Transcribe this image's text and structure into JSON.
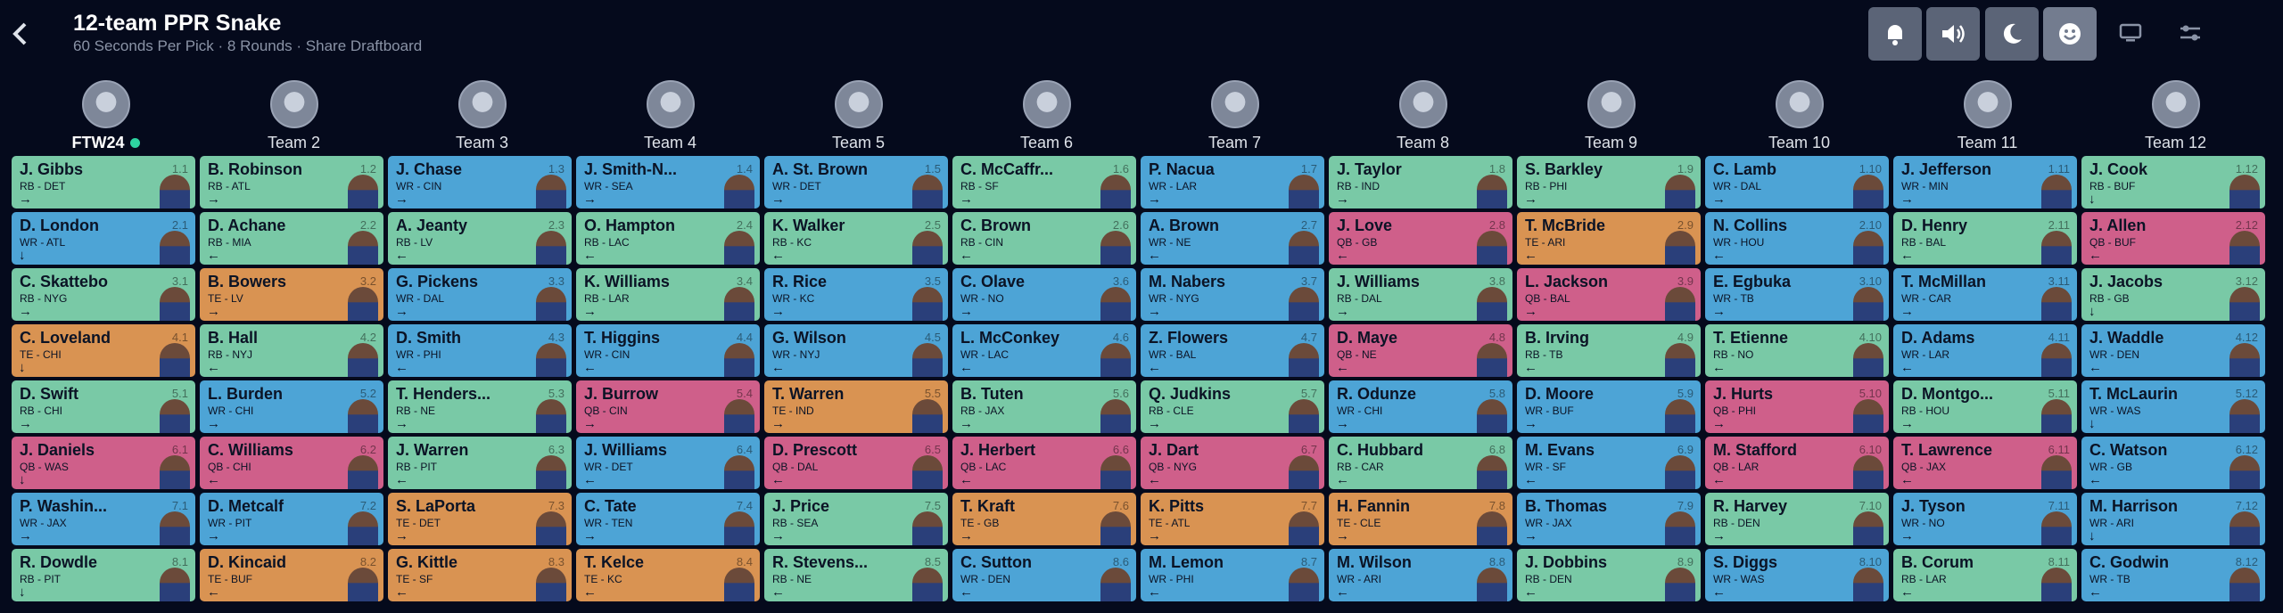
{
  "header": {
    "title": "12-team PPR Snake",
    "subtitle": "60 Seconds Per Pick · 8 Rounds · Share Draftboard"
  },
  "teams": [
    "FTW24",
    "Team 2",
    "Team 3",
    "Team 4",
    "Team 5",
    "Team 6",
    "Team 7",
    "Team 8",
    "Team 9",
    "Team 10",
    "Team 11",
    "Team 12"
  ],
  "position_colors": {
    "RB": "#79c9a6",
    "WR": "#4da4d6",
    "QB": "#cf5f8a",
    "TE": "#d99352"
  },
  "rounds": [
    [
      {
        "name": "J. Gibbs",
        "info": "RB - DET",
        "pick": "1.1"
      },
      {
        "name": "B. Robinson",
        "info": "RB - ATL",
        "pick": "1.2"
      },
      {
        "name": "J. Chase",
        "info": "WR - CIN",
        "pick": "1.3"
      },
      {
        "name": "J. Smith-N...",
        "info": "WR - SEA",
        "pick": "1.4"
      },
      {
        "name": "A. St. Brown",
        "info": "WR - DET",
        "pick": "1.5"
      },
      {
        "name": "C. McCaffr...",
        "info": "RB - SF",
        "pick": "1.6"
      },
      {
        "name": "P. Nacua",
        "info": "WR - LAR",
        "pick": "1.7"
      },
      {
        "name": "J. Taylor",
        "info": "RB - IND",
        "pick": "1.8"
      },
      {
        "name": "S. Barkley",
        "info": "RB - PHI",
        "pick": "1.9"
      },
      {
        "name": "C. Lamb",
        "info": "WR - DAL",
        "pick": "1.10"
      },
      {
        "name": "J. Jefferson",
        "info": "WR - MIN",
        "pick": "1.11"
      },
      {
        "name": "J. Cook",
        "info": "RB - BUF",
        "pick": "1.12"
      }
    ],
    [
      {
        "name": "J. Allen",
        "info": "QB - BUF",
        "pick": "2.12"
      },
      {
        "name": "D. Henry",
        "info": "RB - BAL",
        "pick": "2.11"
      },
      {
        "name": "N. Collins",
        "info": "WR - HOU",
        "pick": "2.10"
      },
      {
        "name": "T. McBride",
        "info": "TE - ARI",
        "pick": "2.9"
      },
      {
        "name": "J. Love",
        "info": "QB - GB",
        "pick": "2.8"
      },
      {
        "name": "A. Brown",
        "info": "WR - NE",
        "pick": "2.7"
      },
      {
        "name": "C. Brown",
        "info": "RB - CIN",
        "pick": "2.6"
      },
      {
        "name": "K. Walker",
        "info": "RB - KC",
        "pick": "2.5"
      },
      {
        "name": "O. Hampton",
        "info": "RB - LAC",
        "pick": "2.4"
      },
      {
        "name": "A. Jeanty",
        "info": "RB - LV",
        "pick": "2.3"
      },
      {
        "name": "D. Achane",
        "info": "RB - MIA",
        "pick": "2.2"
      },
      {
        "name": "D. London",
        "info": "WR - ATL",
        "pick": "2.1"
      }
    ],
    [
      {
        "name": "C. Skattebo",
        "info": "RB - NYG",
        "pick": "3.1"
      },
      {
        "name": "B. Bowers",
        "info": "TE - LV",
        "pick": "3.2"
      },
      {
        "name": "G. Pickens",
        "info": "WR - DAL",
        "pick": "3.3"
      },
      {
        "name": "K. Williams",
        "info": "RB - LAR",
        "pick": "3.4"
      },
      {
        "name": "R. Rice",
        "info": "WR - KC",
        "pick": "3.5"
      },
      {
        "name": "C. Olave",
        "info": "WR - NO",
        "pick": "3.6"
      },
      {
        "name": "M. Nabers",
        "info": "WR - NYG",
        "pick": "3.7"
      },
      {
        "name": "J. Williams",
        "info": "RB - DAL",
        "pick": "3.8"
      },
      {
        "name": "L. Jackson",
        "info": "QB - BAL",
        "pick": "3.9"
      },
      {
        "name": "E. Egbuka",
        "info": "WR - TB",
        "pick": "3.10"
      },
      {
        "name": "T. McMillan",
        "info": "WR - CAR",
        "pick": "3.11"
      },
      {
        "name": "J. Jacobs",
        "info": "RB - GB",
        "pick": "3.12"
      }
    ],
    [
      {
        "name": "J. Waddle",
        "info": "WR - DEN",
        "pick": "4.12"
      },
      {
        "name": "D. Adams",
        "info": "WR - LAR",
        "pick": "4.11"
      },
      {
        "name": "T. Etienne",
        "info": "RB - NO",
        "pick": "4.10"
      },
      {
        "name": "B. Irving",
        "info": "RB - TB",
        "pick": "4.9"
      },
      {
        "name": "D. Maye",
        "info": "QB - NE",
        "pick": "4.8"
      },
      {
        "name": "Z. Flowers",
        "info": "WR - BAL",
        "pick": "4.7"
      },
      {
        "name": "L. McConkey",
        "info": "WR - LAC",
        "pick": "4.6"
      },
      {
        "name": "G. Wilson",
        "info": "WR - NYJ",
        "pick": "4.5"
      },
      {
        "name": "T. Higgins",
        "info": "WR - CIN",
        "pick": "4.4"
      },
      {
        "name": "D. Smith",
        "info": "WR - PHI",
        "pick": "4.3"
      },
      {
        "name": "B. Hall",
        "info": "RB - NYJ",
        "pick": "4.2"
      },
      {
        "name": "C. Loveland",
        "info": "TE - CHI",
        "pick": "4.1"
      }
    ],
    [
      {
        "name": "D. Swift",
        "info": "RB - CHI",
        "pick": "5.1"
      },
      {
        "name": "L. Burden",
        "info": "WR - CHI",
        "pick": "5.2"
      },
      {
        "name": "T. Henders...",
        "info": "RB - NE",
        "pick": "5.3"
      },
      {
        "name": "J. Burrow",
        "info": "QB - CIN",
        "pick": "5.4"
      },
      {
        "name": "T. Warren",
        "info": "TE - IND",
        "pick": "5.5"
      },
      {
        "name": "B. Tuten",
        "info": "RB - JAX",
        "pick": "5.6"
      },
      {
        "name": "Q. Judkins",
        "info": "RB - CLE",
        "pick": "5.7"
      },
      {
        "name": "R. Odunze",
        "info": "WR - CHI",
        "pick": "5.8"
      },
      {
        "name": "D. Moore",
        "info": "WR - BUF",
        "pick": "5.9"
      },
      {
        "name": "J. Hurts",
        "info": "QB - PHI",
        "pick": "5.10"
      },
      {
        "name": "D. Montgo...",
        "info": "RB - HOU",
        "pick": "5.11"
      },
      {
        "name": "T. McLaurin",
        "info": "WR - WAS",
        "pick": "5.12"
      }
    ],
    [
      {
        "name": "C. Watson",
        "info": "WR - GB",
        "pick": "6.12"
      },
      {
        "name": "T. Lawrence",
        "info": "QB - JAX",
        "pick": "6.11"
      },
      {
        "name": "M. Stafford",
        "info": "QB - LAR",
        "pick": "6.10"
      },
      {
        "name": "M. Evans",
        "info": "WR - SF",
        "pick": "6.9"
      },
      {
        "name": "C. Hubbard",
        "info": "RB - CAR",
        "pick": "6.8"
      },
      {
        "name": "J. Dart",
        "info": "QB - NYG",
        "pick": "6.7"
      },
      {
        "name": "J. Herbert",
        "info": "QB - LAC",
        "pick": "6.6"
      },
      {
        "name": "D. Prescott",
        "info": "QB - DAL",
        "pick": "6.5"
      },
      {
        "name": "J. Williams",
        "info": "WR - DET",
        "pick": "6.4"
      },
      {
        "name": "J. Warren",
        "info": "RB - PIT",
        "pick": "6.3"
      },
      {
        "name": "C. Williams",
        "info": "QB - CHI",
        "pick": "6.2"
      },
      {
        "name": "J. Daniels",
        "info": "QB - WAS",
        "pick": "6.1"
      }
    ],
    [
      {
        "name": "P. Washin...",
        "info": "WR - JAX",
        "pick": "7.1"
      },
      {
        "name": "D. Metcalf",
        "info": "WR - PIT",
        "pick": "7.2"
      },
      {
        "name": "S. LaPorta",
        "info": "TE - DET",
        "pick": "7.3"
      },
      {
        "name": "C. Tate",
        "info": "WR - TEN",
        "pick": "7.4"
      },
      {
        "name": "J. Price",
        "info": "RB - SEA",
        "pick": "7.5"
      },
      {
        "name": "T. Kraft",
        "info": "TE - GB",
        "pick": "7.6"
      },
      {
        "name": "K. Pitts",
        "info": "TE - ATL",
        "pick": "7.7"
      },
      {
        "name": "H. Fannin",
        "info": "TE - CLE",
        "pick": "7.8"
      },
      {
        "name": "B. Thomas",
        "info": "WR - JAX",
        "pick": "7.9"
      },
      {
        "name": "R. Harvey",
        "info": "RB - DEN",
        "pick": "7.10"
      },
      {
        "name": "J. Tyson",
        "info": "WR - NO",
        "pick": "7.11"
      },
      {
        "name": "M. Harrison",
        "info": "WR - ARI",
        "pick": "7.12"
      }
    ],
    [
      {
        "name": "C. Godwin",
        "info": "WR - TB",
        "pick": "8.12"
      },
      {
        "name": "B. Corum",
        "info": "RB - LAR",
        "pick": "8.11"
      },
      {
        "name": "S. Diggs",
        "info": "WR - WAS",
        "pick": "8.10"
      },
      {
        "name": "J. Dobbins",
        "info": "RB - DEN",
        "pick": "8.9"
      },
      {
        "name": "M. Wilson",
        "info": "WR - ARI",
        "pick": "8.8"
      },
      {
        "name": "M. Lemon",
        "info": "WR - PHI",
        "pick": "8.7"
      },
      {
        "name": "C. Sutton",
        "info": "WR - DEN",
        "pick": "8.6"
      },
      {
        "name": "R. Stevens...",
        "info": "RB - NE",
        "pick": "8.5"
      },
      {
        "name": "T. Kelce",
        "info": "TE - KC",
        "pick": "8.4"
      },
      {
        "name": "G. Kittle",
        "info": "TE - SF",
        "pick": "8.3"
      },
      {
        "name": "D. Kincaid",
        "info": "TE - BUF",
        "pick": "8.2"
      },
      {
        "name": "R. Dowdle",
        "info": "RB - PIT",
        "pick": "8.1"
      }
    ]
  ]
}
